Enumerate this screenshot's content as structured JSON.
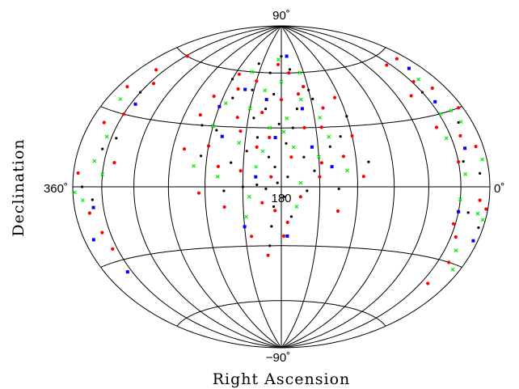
{
  "chart_data": {
    "type": "scatter",
    "projection": "aitoff-hammer (all-sky)",
    "xlabel": "Right Ascension",
    "ylabel": "Declination",
    "tick_labels": {
      "top": "90˚",
      "bottom": "−90˚",
      "left": "360˚",
      "right": "0˚",
      "center": "180"
    },
    "xlim": [
      0,
      360
    ],
    "ylim": [
      -90,
      90
    ],
    "x_direction": "decreasing (360 at left, 0 at right)",
    "grid": true,
    "grid_ra_step_deg": 30,
    "grid_dec_step_deg": 30,
    "legend": "none",
    "series": [
      {
        "marker": "dot",
        "color": "#000000",
        "points": [
          [
            185,
            10
          ],
          [
            190,
            15
          ],
          [
            175,
            5
          ],
          [
            200,
            25
          ],
          [
            170,
            30
          ],
          [
            210,
            0
          ],
          [
            160,
            -2
          ],
          [
            230,
            45
          ],
          [
            150,
            50
          ],
          [
            195,
            60
          ],
          [
            180,
            70
          ],
          [
            165,
            40
          ],
          [
            205,
            35
          ],
          [
            220,
            12
          ],
          [
            140,
            20
          ],
          [
            245,
            15
          ],
          [
            130,
            25
          ],
          [
            178,
            -5
          ],
          [
            186,
            -10
          ],
          [
            172,
            -15
          ],
          [
            199,
            1
          ],
          [
            183,
            2
          ],
          [
            240,
            55
          ],
          [
            120,
            35
          ],
          [
            215,
            65
          ],
          [
            188,
            48
          ],
          [
            176,
            22
          ],
          [
            208,
            18
          ],
          [
            154,
            8
          ],
          [
            236,
            28
          ],
          [
            168,
            62
          ],
          [
            192,
            -1
          ],
          [
            225,
            -2
          ],
          [
            135,
            -1
          ],
          [
            250,
            30
          ],
          [
            110,
            12
          ],
          [
            195,
            40
          ],
          [
            162,
            15
          ],
          [
            182,
            32
          ],
          [
            212,
            50
          ],
          [
            148,
            45
          ],
          [
            188,
            -20
          ],
          [
            190,
            -30
          ],
          [
            330,
            40
          ],
          [
            335,
            15
          ],
          [
            325,
            20
          ],
          [
            340,
            -5
          ],
          [
            350,
            0
          ],
          [
            10,
            5
          ],
          [
            20,
            -10
          ],
          [
            15,
            25
          ],
          [
            30,
            40
          ],
          [
            5,
            -15
          ],
          [
            25,
            10
          ]
        ]
      },
      {
        "marker": "dot",
        "color": "#ff0000",
        "points": [
          [
            200,
            20
          ],
          [
            180,
            45
          ],
          [
            160,
            30
          ],
          [
            220,
            35
          ],
          [
            240,
            20
          ],
          [
            130,
            15
          ],
          [
            150,
            5
          ],
          [
            210,
            55
          ],
          [
            170,
            60
          ],
          [
            190,
            25
          ],
          [
            230,
            10
          ],
          [
            140,
            40
          ],
          [
            250,
            45
          ],
          [
            120,
            25
          ],
          [
            260,
            18
          ],
          [
            115,
            5
          ],
          [
            195,
            -8
          ],
          [
            175,
            -18
          ],
          [
            205,
            -25
          ],
          [
            185,
            -12
          ],
          [
            165,
            -5
          ],
          [
            245,
            -3
          ],
          [
            225,
            -10
          ],
          [
            135,
            -12
          ],
          [
            215,
            28
          ],
          [
            155,
            52
          ],
          [
            235,
            58
          ],
          [
            185,
            65
          ],
          [
            198,
            38
          ],
          [
            162,
            48
          ],
          [
            212,
            8
          ],
          [
            145,
            30
          ],
          [
            255,
            35
          ],
          [
            125,
            45
          ],
          [
            188,
            5
          ],
          [
            172,
            15
          ],
          [
            228,
            50
          ],
          [
            148,
            12
          ],
          [
            178,
            -25
          ],
          [
            192,
            -35
          ],
          [
            330,
            30
          ],
          [
            340,
            50
          ],
          [
            320,
            10
          ],
          [
            345,
            -10
          ],
          [
            355,
            5
          ],
          [
            335,
            -25
          ],
          [
            350,
            40
          ],
          [
            325,
            45
          ],
          [
            15,
            40
          ],
          [
            20,
            20
          ],
          [
            30,
            10
          ],
          [
            10,
            -5
          ],
          [
            25,
            -20
          ],
          [
            5,
            30
          ],
          [
            35,
            55
          ],
          [
            40,
            25
          ],
          [
            8,
            15
          ],
          [
            18,
            -30
          ],
          [
            28,
            45
          ],
          [
            2,
            -8
          ],
          [
            12,
            55
          ],
          [
            45,
            40
          ],
          [
            22,
            -40
          ],
          [
            32,
            -15
          ],
          [
            345,
            25
          ],
          [
            338,
            -18
          ],
          [
            328,
            60
          ]
        ]
      },
      {
        "marker": "x",
        "color": "#00ee00",
        "points": [
          [
            190,
            30
          ],
          [
            170,
            20
          ],
          [
            210,
            40
          ],
          [
            150,
            15
          ],
          [
            230,
            5
          ],
          [
            180,
            55
          ],
          [
            200,
            10
          ],
          [
            160,
            45
          ],
          [
            240,
            30
          ],
          [
            140,
            25
          ],
          [
            220,
            60
          ],
          [
            175,
            35
          ],
          [
            205,
            -5
          ],
          [
            165,
            2
          ],
          [
            195,
            18
          ],
          [
            215,
            22
          ],
          [
            145,
            35
          ],
          [
            235,
            42
          ],
          [
            185,
            68
          ],
          [
            155,
            60
          ],
          [
            250,
            10
          ],
          [
            128,
            8
          ],
          [
            198,
            50
          ],
          [
            178,
            28
          ],
          [
            208,
            -15
          ],
          [
            168,
            -10
          ],
          [
            335,
            20
          ],
          [
            345,
            35
          ],
          [
            330,
            5
          ],
          [
            350,
            -5
          ],
          [
            340,
            10
          ],
          [
            358,
            -2
          ],
          [
            15,
            30
          ],
          [
            5,
            10
          ],
          [
            25,
            5
          ],
          [
            20,
            45
          ],
          [
            10,
            -10
          ],
          [
            30,
            -5
          ],
          [
            35,
            20
          ],
          [
            12,
            25
          ],
          [
            18,
            -25
          ],
          [
            28,
            30
          ],
          [
            3,
            -12
          ],
          [
            8,
            -32
          ]
        ]
      },
      {
        "marker": "square",
        "color": "#0000ff",
        "points": [
          [
            185,
            25
          ],
          [
            220,
            50
          ],
          [
            160,
            40
          ],
          [
            200,
            5
          ],
          [
            240,
            40
          ],
          [
            140,
            10
          ],
          [
            230,
            25
          ],
          [
            170,
            70
          ],
          [
            195,
            45
          ],
          [
            210,
            -20
          ],
          [
            175,
            -25
          ],
          [
            155,
            20
          ],
          [
            325,
            35
          ],
          [
            340,
            -8
          ],
          [
            350,
            -20
          ],
          [
            335,
            -35
          ],
          [
            20,
            15
          ],
          [
            15,
            50
          ],
          [
            30,
            -10
          ],
          [
            5,
            -20
          ],
          [
            25,
            35
          ]
        ]
      }
    ]
  }
}
